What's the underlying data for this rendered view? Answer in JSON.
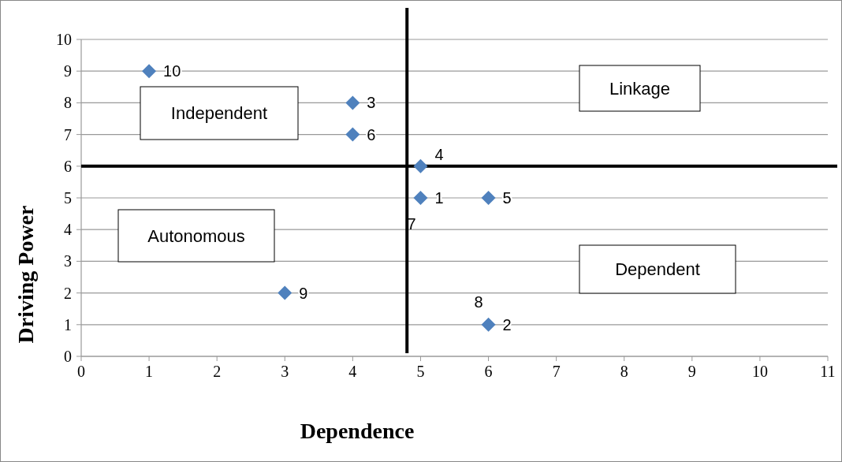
{
  "chart_data": {
    "type": "scatter",
    "xlabel": "Dependence",
    "ylabel": "Driving Power",
    "x": [
      1,
      4,
      4,
      5,
      5,
      6,
      3,
      6
    ],
    "values": [
      9,
      8,
      7,
      6,
      5,
      5,
      2,
      1
    ],
    "color": "#4f81bd",
    "marker": "diamond",
    "xlim": [
      0,
      11
    ],
    "xticks": [
      0,
      1,
      2,
      3,
      4,
      5,
      6,
      7,
      8,
      9,
      10,
      11
    ],
    "ylim": [
      0,
      10
    ],
    "yticks": [
      0,
      1,
      2,
      3,
      4,
      5,
      6,
      7,
      8,
      9,
      10
    ],
    "grid": "y",
    "ref_lines": [
      {
        "axis": "x",
        "value": 4.8,
        "color": "#000000"
      },
      {
        "axis": "y",
        "value": 6,
        "color": "#000000"
      }
    ],
    "annotations": [
      "Independent",
      "Linkage",
      "Autonomous",
      "Dependent",
      "7",
      "8",
      {
        "text": "10",
        "x": 1,
        "y": 9
      },
      {
        "text": "3",
        "x": 4,
        "y": 8
      },
      {
        "text": "6",
        "x": 4,
        "y": 7
      },
      {
        "text": "4",
        "x": 5,
        "y": 6
      },
      {
        "text": "1",
        "x": 5,
        "y": 5
      },
      {
        "text": "5",
        "x": 6,
        "y": 5
      },
      {
        "text": "9",
        "x": 3,
        "y": 2
      },
      {
        "text": "2",
        "x": 6,
        "y": 1
      }
    ]
  }
}
